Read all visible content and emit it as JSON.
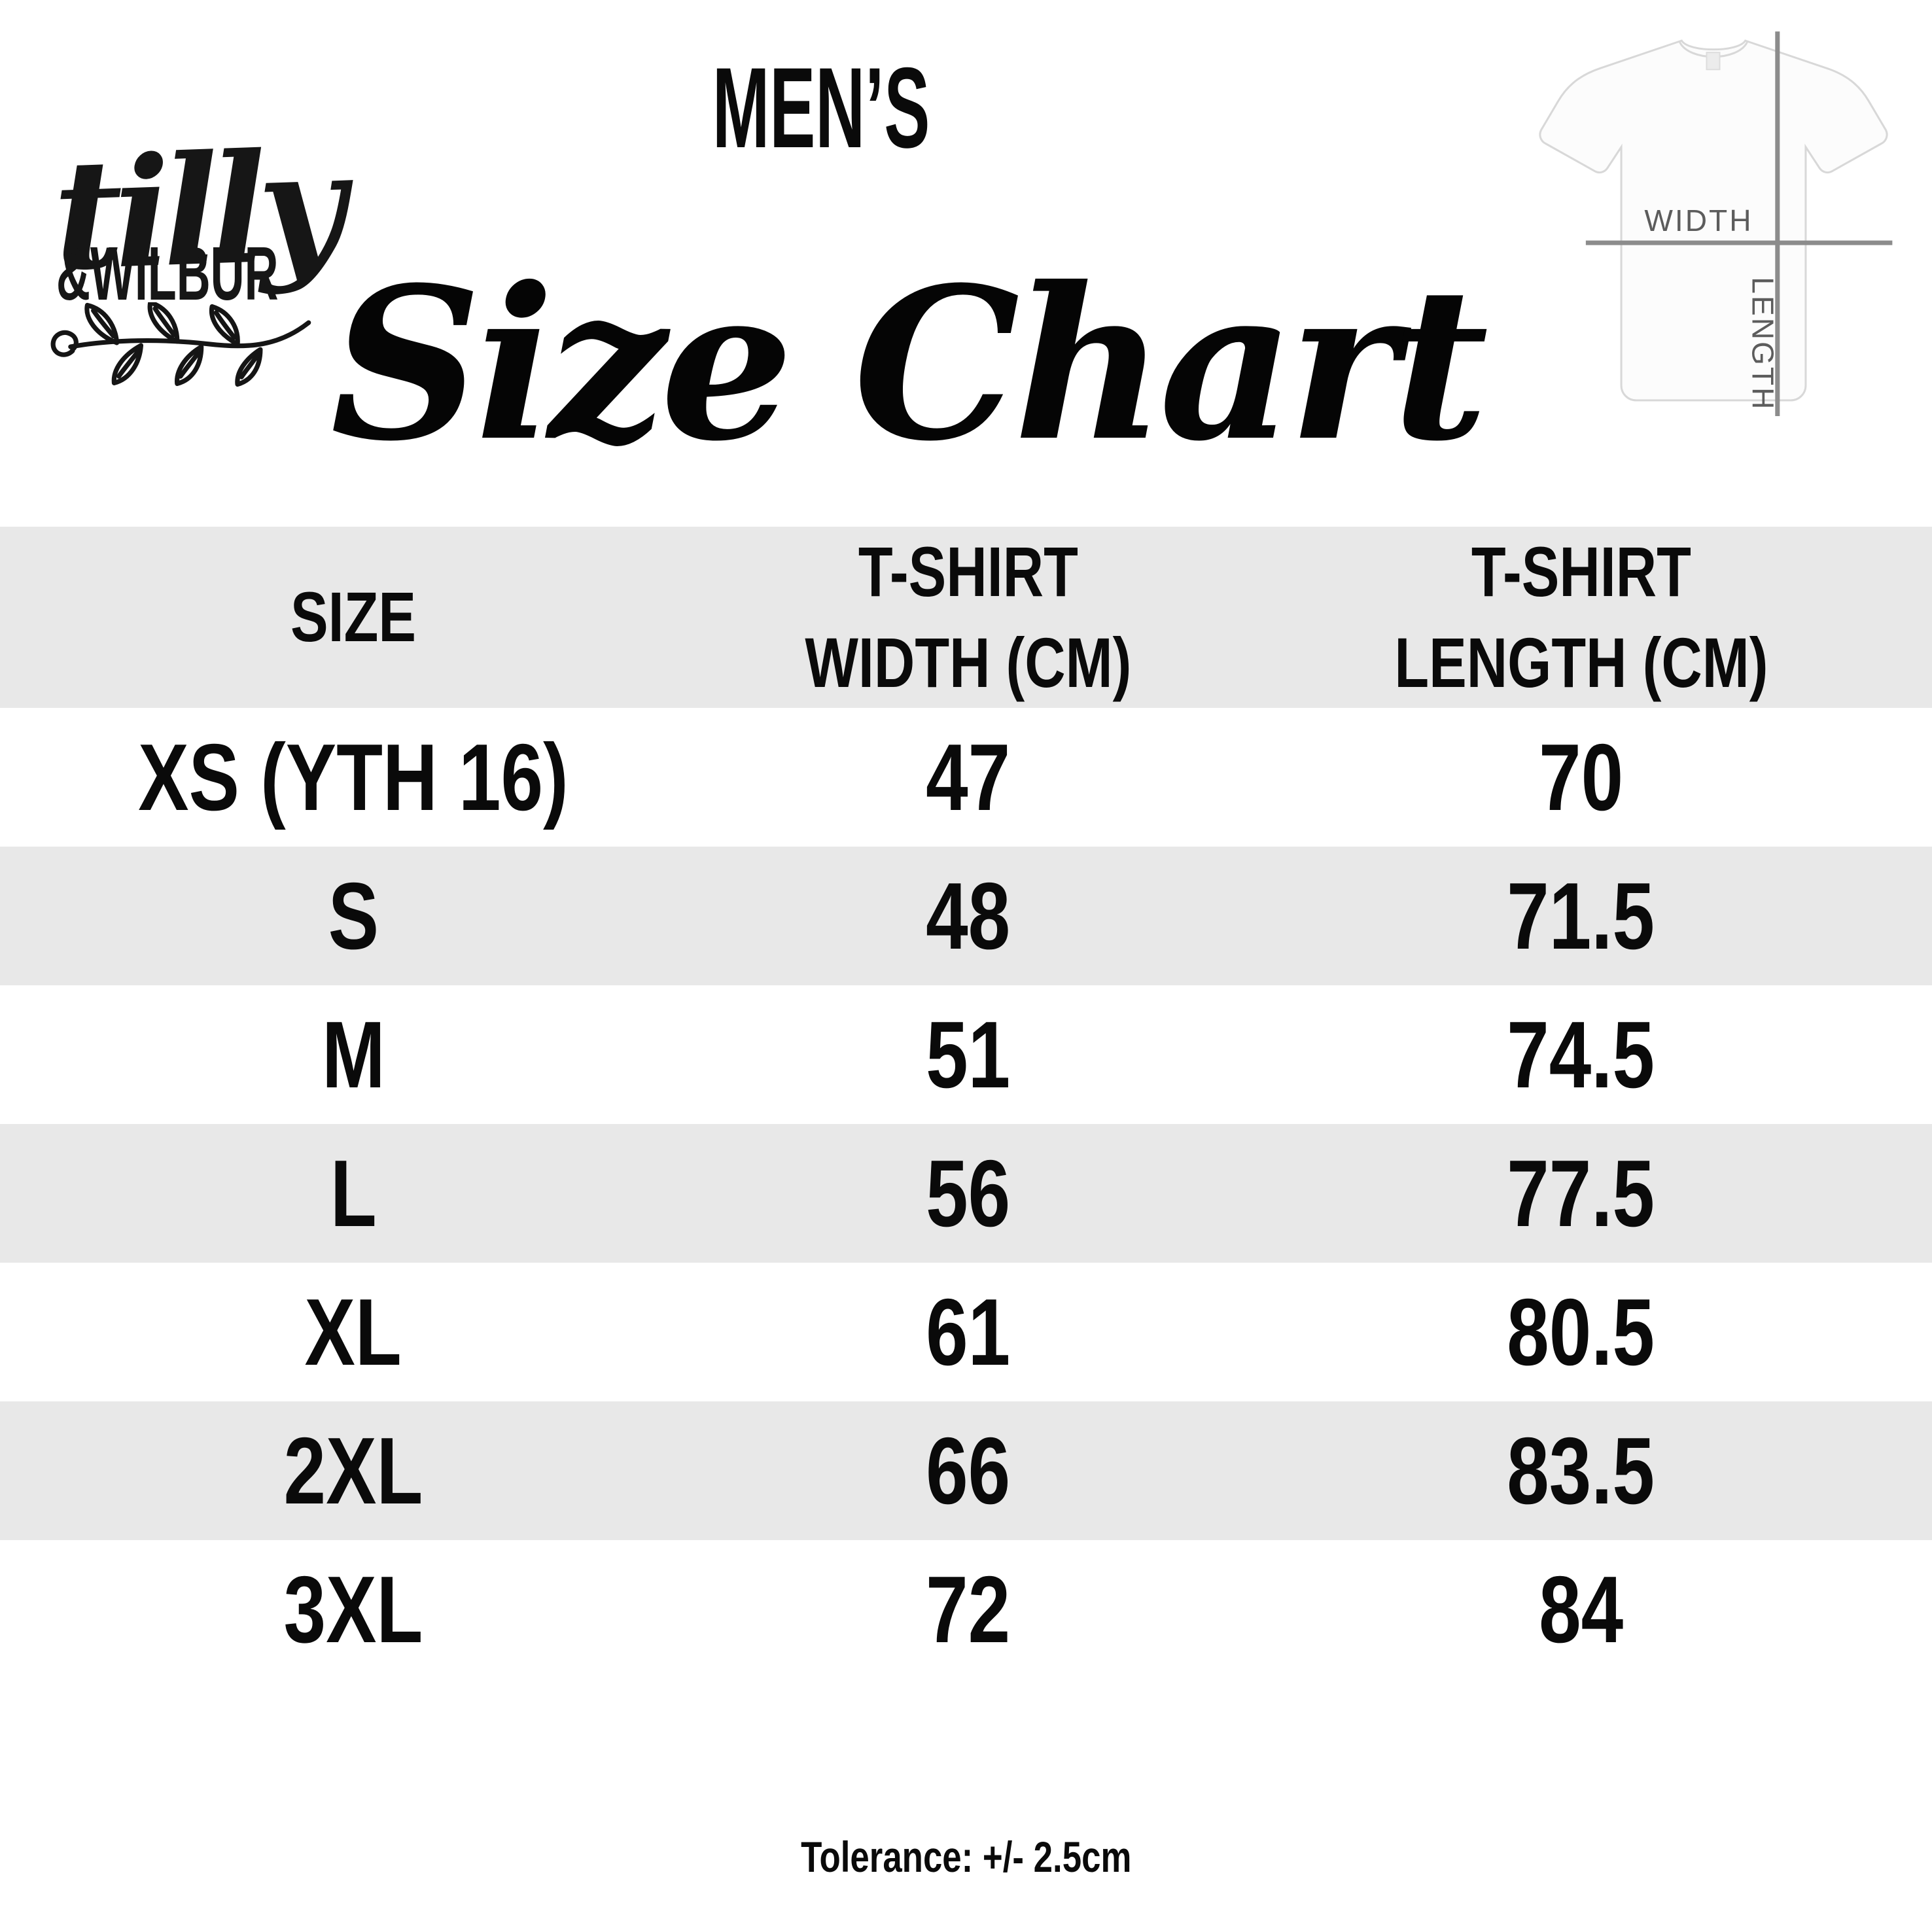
{
  "logo": {
    "brand_top": "tilly",
    "brand_bottom": "&WILBUR"
  },
  "header": {
    "category": "MEN’S",
    "title": "Size Chart"
  },
  "tshirt_diagram": {
    "width_label": "WIDTH",
    "length_label": "LENGTH"
  },
  "table": {
    "columns": [
      {
        "lines": [
          "SIZE"
        ]
      },
      {
        "lines": [
          "T-SHIRT",
          "WIDTH (CM)"
        ]
      },
      {
        "lines": [
          "T-SHIRT",
          "LENGTH (CM)"
        ]
      }
    ]
  },
  "chart_data": {
    "type": "table",
    "title": "MEN’S Size Chart",
    "columns": [
      "SIZE",
      "T-SHIRT WIDTH (CM)",
      "T-SHIRT LENGTH (CM)"
    ],
    "rows": [
      [
        "XS (YTH 16)",
        47,
        70
      ],
      [
        "S",
        48,
        71.5
      ],
      [
        "M",
        51,
        74.5
      ],
      [
        "L",
        56,
        77.5
      ],
      [
        "XL",
        61,
        80.5
      ],
      [
        "2XL",
        66,
        83.5
      ],
      [
        "3XL",
        72,
        84
      ]
    ],
    "note": "Tolerance: +/- 2.5cm"
  },
  "footer": {
    "tolerance_note": "Tolerance: +/- 2.5cm"
  },
  "colors": {
    "stripe": "#e8e8e8",
    "text": "#0a0a0a",
    "diagram_line": "#8c8c8c",
    "diagram_text": "#5c5c5c"
  }
}
